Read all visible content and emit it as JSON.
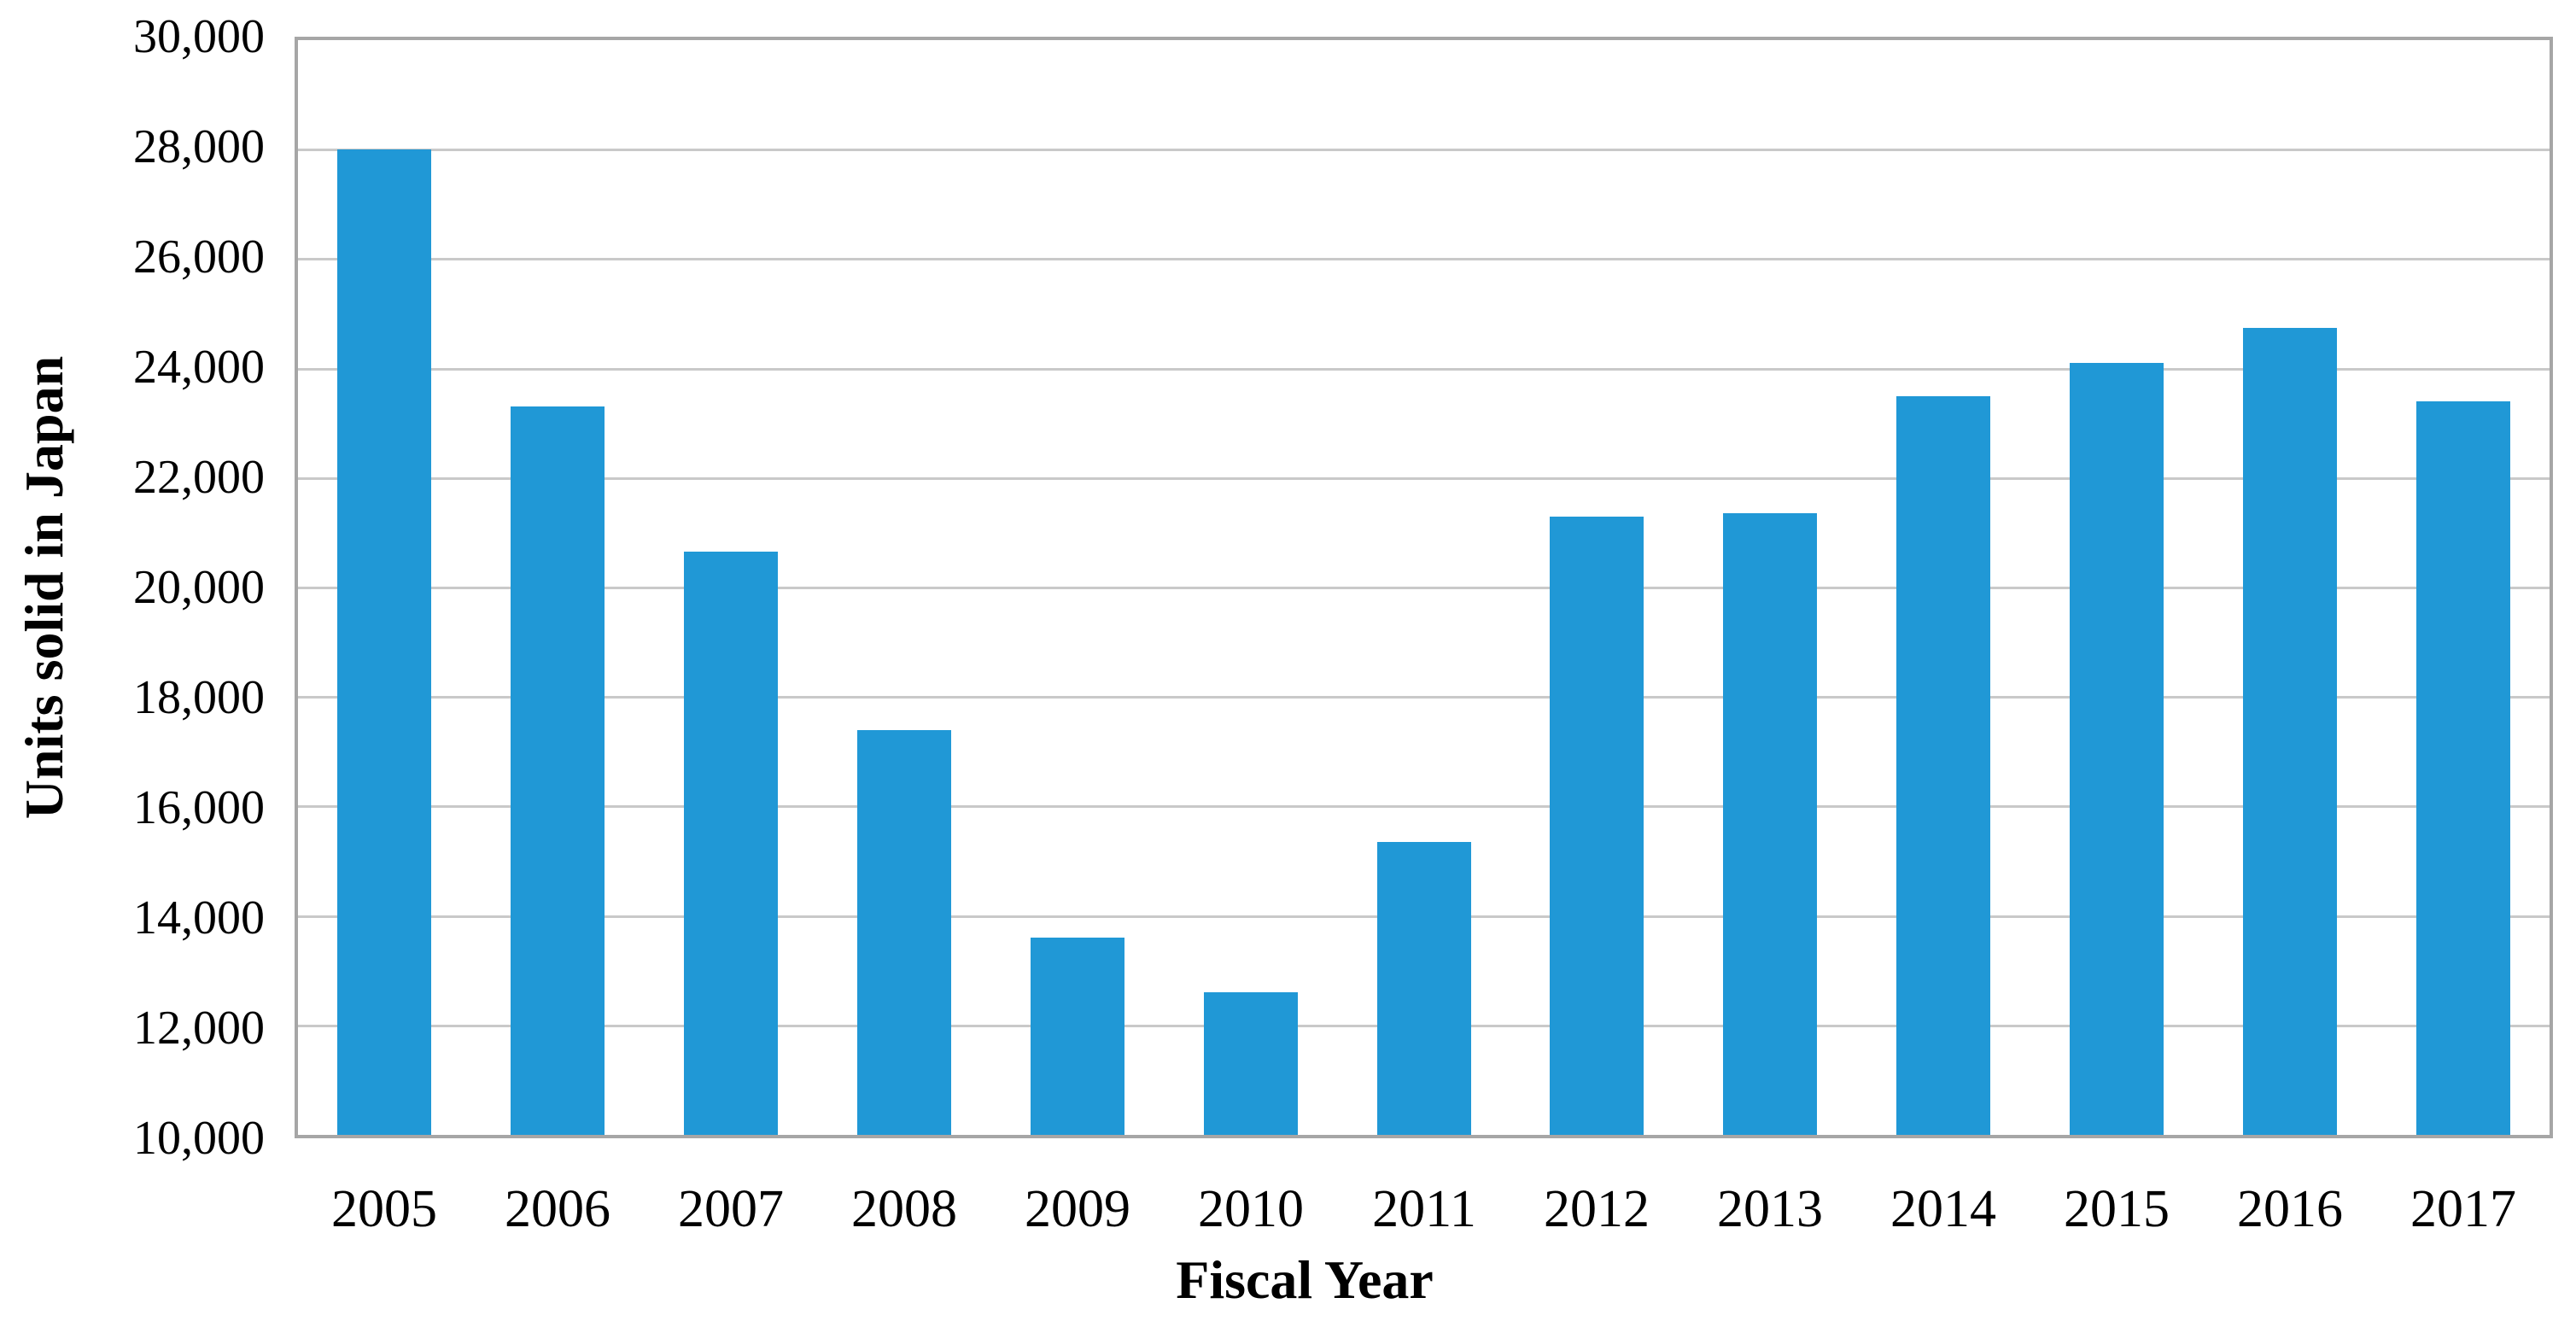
{
  "chart_data": {
    "type": "bar",
    "title": "",
    "categories": [
      "2005",
      "2006",
      "2007",
      "2008",
      "2009",
      "2010",
      "2011",
      "2012",
      "2013",
      "2014",
      "2015",
      "2016",
      "2017"
    ],
    "values": [
      28000,
      23300,
      20650,
      17400,
      13600,
      12600,
      15350,
      21300,
      21350,
      23500,
      24100,
      24750,
      23400
    ],
    "xlabel": "Fiscal Year",
    "ylabel": "Units solid in Japan",
    "ylim": [
      10000,
      30000
    ],
    "ytick_step": 2000,
    "y_ticks": [
      "30,000",
      "28,000",
      "26,000",
      "24,000",
      "22,000",
      "20,000",
      "18,000",
      "16,000",
      "14,000",
      "12,000",
      "10,000"
    ],
    "grid": true,
    "legend": "none",
    "colors": {
      "bar": "#2098d6",
      "gridline": "#c9c9c9",
      "axis_border": "#a6a6a6",
      "text": "#000000"
    }
  }
}
